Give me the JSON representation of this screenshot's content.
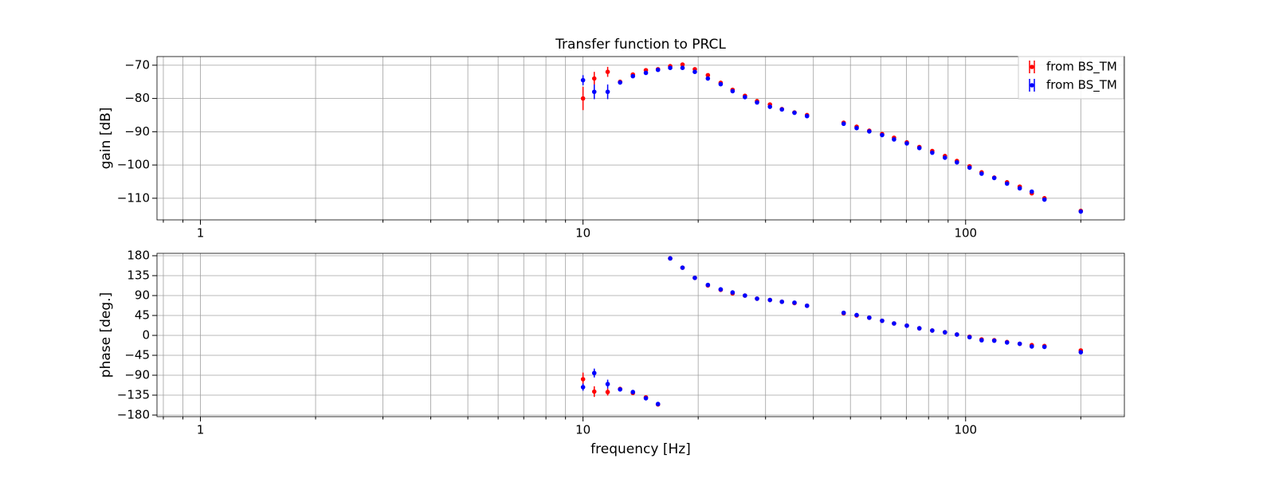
{
  "chart_data": [
    {
      "type": "scatter",
      "title": "Transfer function to PRCL",
      "ylabel": "gain [dB]",
      "xscale": "log",
      "grid": true,
      "legend": "upper right",
      "x": [
        10,
        10.7,
        11.6,
        12.5,
        13.5,
        14.6,
        15.7,
        16.9,
        18.2,
        19.6,
        21.2,
        22.9,
        24.6,
        26.5,
        28.5,
        30.8,
        33.1,
        35.7,
        38.5,
        48,
        51.9,
        56,
        60.5,
        65,
        70.2,
        75.7,
        81.8,
        88.3,
        94.9,
        102.4,
        110.1,
        118.8,
        128.3,
        138.5,
        148.9,
        160.7,
        200
      ],
      "xlim": [
        0.77,
        260
      ],
      "xticks": [
        1,
        10,
        100
      ],
      "xminorticks": [
        0.8,
        0.9,
        2,
        3,
        4,
        5,
        6,
        7,
        8,
        9,
        20,
        30,
        40,
        50,
        60,
        70,
        80,
        90,
        200
      ],
      "ylim": [
        -116.5,
        -67.4
      ],
      "yticks": [
        {
          "value": -70,
          "label": "−70"
        },
        {
          "value": -80,
          "label": "−80"
        },
        {
          "value": -90,
          "label": "−90"
        },
        {
          "value": -100,
          "label": "−100"
        },
        {
          "value": -110,
          "label": "−110"
        }
      ],
      "series": [
        {
          "name": "from BS_TM",
          "color": "#ff0000",
          "values": [
            -80,
            -74,
            -72,
            -75,
            -72.8,
            -71.5,
            -71.2,
            -70.3,
            -69.8,
            -71.2,
            -73,
            -75.3,
            -77.4,
            -79.2,
            -80.8,
            -81.8,
            -83.2,
            -84.2,
            -85,
            -87.3,
            -88.5,
            -89.7,
            -90.7,
            -91.8,
            -93.2,
            -94.6,
            -95.8,
            -97.3,
            -98.8,
            -100.4,
            -102.2,
            -103.8,
            -105.2,
            -106.5,
            -108.5,
            -110,
            -113.8
          ],
          "errors": [
            3.5,
            2,
            1.5,
            0.6,
            0.5,
            0.4,
            0.3,
            0.3,
            0.3,
            0.3,
            0.3,
            0.3,
            0.3,
            0.3,
            0.3,
            0.3,
            0.3,
            0.3,
            0.3,
            0.3,
            0.3,
            0.3,
            0.3,
            0.3,
            0.3,
            0.3,
            0.3,
            0.3,
            0.3,
            0.3,
            0.3,
            0.3,
            0.3,
            0.3,
            0.3,
            0.3,
            0.3
          ]
        },
        {
          "name": "from BS_TM",
          "color": "#0000ff",
          "values": [
            -74.5,
            -78,
            -78,
            -75.2,
            -73.3,
            -72.3,
            -71.4,
            -70.8,
            -70.8,
            -72,
            -74,
            -75.7,
            -77.8,
            -79.6,
            -81.2,
            -82.5,
            -83.3,
            -84.3,
            -85.3,
            -87.6,
            -88.9,
            -89.9,
            -91,
            -92.3,
            -93.5,
            -94.9,
            -96.3,
            -97.8,
            -99.2,
            -100.8,
            -102.6,
            -103.9,
            -105.6,
            -107,
            -108,
            -110.4,
            -114
          ],
          "errors": [
            1.5,
            2.2,
            2.2,
            0.6,
            0.5,
            0.4,
            0.3,
            0.3,
            0.3,
            0.3,
            0.3,
            0.3,
            0.3,
            0.3,
            0.3,
            0.3,
            0.3,
            0.3,
            0.3,
            0.3,
            0.3,
            0.3,
            0.3,
            0.3,
            0.3,
            0.3,
            0.3,
            0.3,
            0.3,
            0.3,
            0.3,
            0.3,
            0.3,
            0.3,
            0.3,
            0.3,
            0.3
          ]
        }
      ]
    },
    {
      "type": "scatter",
      "ylabel": "phase [deg.]",
      "xlabel": "frequency [Hz]",
      "xscale": "log",
      "grid": true,
      "x": [
        10,
        10.7,
        11.6,
        12.5,
        13.5,
        14.6,
        15.7,
        16.9,
        18.2,
        19.6,
        21.2,
        22.9,
        24.6,
        26.5,
        28.5,
        30.8,
        33.1,
        35.7,
        38.5,
        48,
        51.9,
        56,
        60.5,
        65,
        70.2,
        75.7,
        81.8,
        88.3,
        94.9,
        102.4,
        110.1,
        118.8,
        128.3,
        138.5,
        148.9,
        160.7,
        200
      ],
      "xlim": [
        0.77,
        260
      ],
      "xticks": [
        1,
        10,
        100
      ],
      "xminorticks": [
        0.8,
        0.9,
        2,
        3,
        4,
        5,
        6,
        7,
        8,
        9,
        20,
        30,
        40,
        50,
        60,
        70,
        80,
        90,
        200
      ],
      "ylim": [
        -183.6,
        185.4
      ],
      "yticks": [
        180,
        135,
        90,
        45,
        0,
        {
          "value": -45,
          "label": "−45"
        },
        {
          "value": -90,
          "label": "−90"
        },
        {
          "value": -135,
          "label": "−135"
        },
        {
          "value": -180,
          "label": "−180"
        }
      ],
      "series": [
        {
          "name": "from BS_TM",
          "color": "#ff0000",
          "values": [
            -99,
            -127,
            -128,
            -121,
            -130,
            -140,
            -156,
            174,
            153,
            130,
            113,
            103,
            95,
            90,
            83,
            80,
            76,
            73,
            67,
            50,
            45,
            40,
            33,
            27,
            22,
            16,
            11,
            7,
            2,
            -3,
            -9,
            -11,
            -15,
            -19,
            -22,
            -24,
            -34
          ],
          "errors": [
            15,
            12,
            8,
            4,
            3,
            3,
            2,
            1.5,
            1.5,
            1.5,
            1.5,
            1.5,
            1.5,
            1.5,
            1.5,
            1.5,
            1.5,
            1.5,
            1.5,
            1.5,
            1.5,
            1.5,
            1.5,
            1.5,
            1.5,
            1.5,
            1.5,
            1.5,
            1.5,
            1.5,
            1.5,
            1.5,
            1.5,
            1.5,
            1.5,
            1.5,
            2
          ]
        },
        {
          "name": "from BS_TM",
          "color": "#0000ff",
          "values": [
            -117,
            -85,
            -110,
            -122,
            -128,
            -142,
            -155,
            174,
            153,
            130,
            114,
            104,
            97,
            90,
            83,
            80,
            76,
            74,
            67,
            51,
            46,
            40,
            33,
            27,
            22,
            16,
            11,
            7,
            2,
            -4,
            -11,
            -12,
            -16,
            -19,
            -25,
            -26,
            -38
          ],
          "errors": [
            8,
            10,
            10,
            4,
            3,
            3,
            2,
            1.5,
            1.5,
            1.5,
            1.5,
            1.5,
            1.5,
            1.5,
            1.5,
            1.5,
            1.5,
            1.5,
            1.5,
            1.5,
            1.5,
            1.5,
            1.5,
            1.5,
            1.5,
            1.5,
            1.5,
            1.5,
            1.5,
            1.5,
            1.5,
            1.5,
            1.5,
            1.5,
            1.5,
            1.5,
            3
          ]
        }
      ]
    }
  ]
}
